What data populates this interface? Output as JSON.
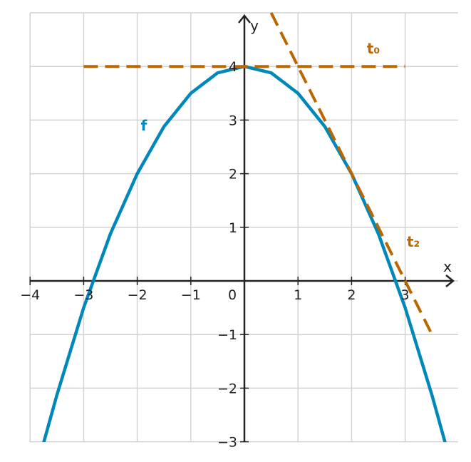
{
  "chart_data": {
    "type": "line",
    "xlabel": "x",
    "ylabel": "y",
    "xlim": [
      -4,
      4
    ],
    "ylim": [
      -3,
      5
    ],
    "grid": true,
    "x_ticks": [
      -4,
      -3,
      -2,
      -1,
      0,
      1,
      2,
      3
    ],
    "x_tick_labels": [
      "−4",
      "−3",
      "−2",
      "−1",
      "0",
      "1",
      "2",
      "3"
    ],
    "y_ticks": [
      -3,
      -2,
      -1,
      1,
      2,
      3,
      4
    ],
    "y_tick_labels": [
      "−3",
      "−2",
      "−1",
      "1",
      "2",
      "3",
      "4"
    ],
    "series": [
      {
        "name": "f",
        "style": "solid",
        "color": "#0088bb",
        "x": [
          -3.75,
          -3.5,
          -3,
          -2.5,
          -2,
          -1.5,
          -1,
          -0.5,
          0,
          0.5,
          1,
          1.5,
          2,
          2.5,
          3,
          3.5,
          3.75
        ],
        "y": [
          -3.03,
          -2.13,
          -0.5,
          0.88,
          2.0,
          2.88,
          3.5,
          3.88,
          4.0,
          3.88,
          3.5,
          2.88,
          2.0,
          0.88,
          -0.5,
          -2.13,
          -3.03
        ]
      },
      {
        "name": "t₀",
        "style": "dashed",
        "color": "#bb6600",
        "x": [
          -3,
          3
        ],
        "y": [
          4,
          4
        ]
      },
      {
        "name": "t₂",
        "style": "dashed",
        "color": "#bb6600",
        "x": [
          0.5,
          3.5
        ],
        "y": [
          5.0,
          -1.0
        ]
      }
    ]
  }
}
